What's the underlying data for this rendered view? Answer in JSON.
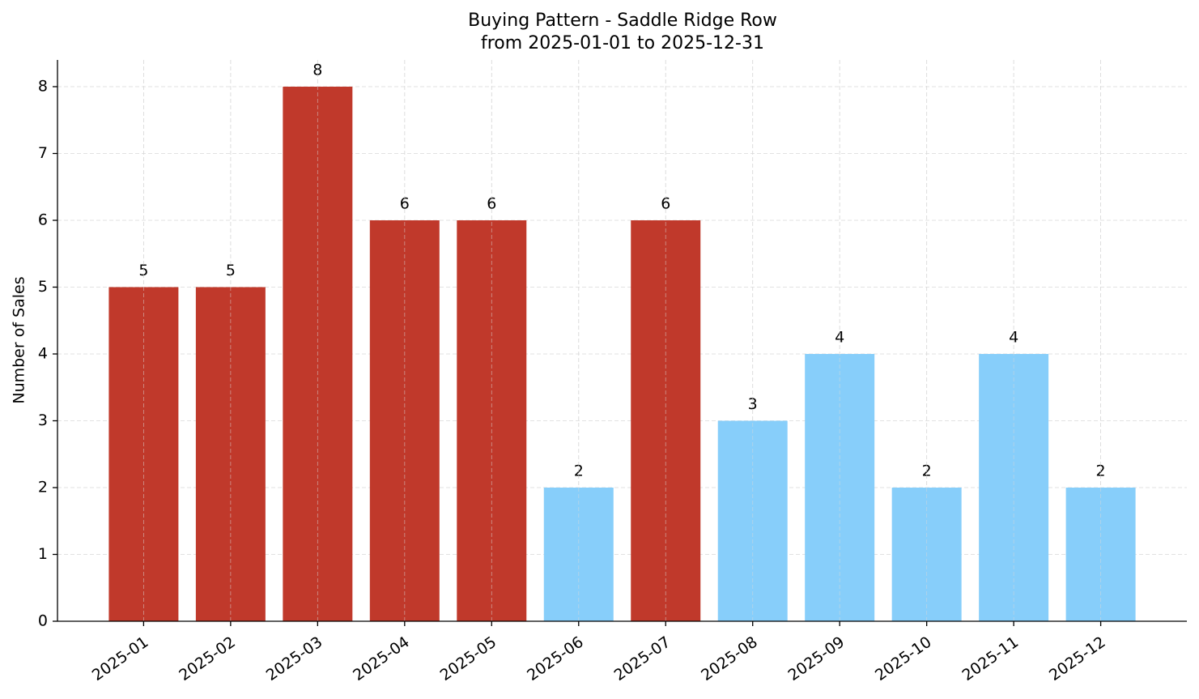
{
  "chart_data": {
    "type": "bar",
    "title": "Buying Pattern - Saddle Ridge Row",
    "subtitle": "from 2025-01-01 to 2025-12-31",
    "y_label": "Number of Sales",
    "categories": [
      "2025-01",
      "2025-02",
      "2025-03",
      "2025-04",
      "2025-05",
      "2025-06",
      "2025-07",
      "2025-08",
      "2025-09",
      "2025-10",
      "2025-11",
      "2025-12"
    ],
    "values": [
      5,
      5,
      8,
      6,
      6,
      2,
      6,
      3,
      4,
      2,
      4,
      2
    ],
    "colors": [
      "#c0392b",
      "#c0392b",
      "#c0392b",
      "#c0392b",
      "#c0392b",
      "#87cefa",
      "#c0392b",
      "#87cefa",
      "#87cefa",
      "#87cefa",
      "#87cefa",
      "#87cefa"
    ],
    "ylim": [
      0,
      8.4
    ],
    "yticks": [
      0,
      1,
      2,
      3,
      4,
      5,
      6,
      7,
      8
    ],
    "grid": true
  }
}
